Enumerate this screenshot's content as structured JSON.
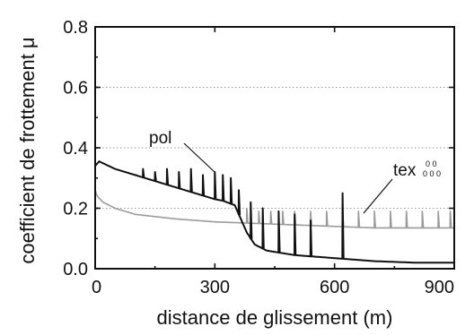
{
  "chart_data": {
    "type": "line",
    "xlabel": "distance de glissement (m)",
    "ylabel": "coefficient de frottement μ",
    "xlim": [
      0,
      900
    ],
    "ylim": [
      0,
      0.8
    ],
    "x_ticks": [
      "0",
      "300",
      "600",
      "900"
    ],
    "y_ticks": [
      "0.0",
      "0.2",
      "0.4",
      "0.6",
      "0.8"
    ],
    "grid": "horizontal dotted lines at 0.2, 0.4, 0.6",
    "colors": {
      "pol": "#111111",
      "tex": "#9a9a9a"
    },
    "annotations": [
      {
        "text": "pol",
        "points_to": [
          320,
          0.31
        ]
      },
      {
        "text": "tex",
        "marker": "0 0 / 0 0 0",
        "points_to": [
          670,
          0.2
        ]
      }
    ],
    "series": [
      {
        "name": "pol",
        "color": "#111111",
        "x": [
          0,
          10,
          50,
          100,
          150,
          200,
          250,
          300,
          320,
          350,
          370,
          380,
          400,
          430,
          500,
          600,
          700,
          800,
          900
        ],
        "y": [
          0.34,
          0.355,
          0.33,
          0.31,
          0.29,
          0.27,
          0.25,
          0.23,
          0.225,
          0.21,
          0.15,
          0.12,
          0.08,
          0.06,
          0.045,
          0.035,
          0.025,
          0.02,
          0.02
        ],
        "spikes": [
          {
            "x": 100,
            "y": 0.31
          },
          {
            "x": 120,
            "y": 0.33
          },
          {
            "x": 150,
            "y": 0.32
          },
          {
            "x": 180,
            "y": 0.33
          },
          {
            "x": 210,
            "y": 0.32
          },
          {
            "x": 240,
            "y": 0.33
          },
          {
            "x": 270,
            "y": 0.31
          },
          {
            "x": 300,
            "y": 0.32
          },
          {
            "x": 320,
            "y": 0.31
          },
          {
            "x": 340,
            "y": 0.3
          },
          {
            "x": 360,
            "y": 0.26
          },
          {
            "x": 390,
            "y": 0.22
          },
          {
            "x": 420,
            "y": 0.2
          },
          {
            "x": 460,
            "y": 0.19
          },
          {
            "x": 500,
            "y": 0.18
          },
          {
            "x": 540,
            "y": 0.16
          },
          {
            "x": 620,
            "y": 0.25
          }
        ]
      },
      {
        "name": "tex",
        "color": "#9a9a9a",
        "x": [
          0,
          5,
          20,
          50,
          100,
          200,
          300,
          400,
          500,
          600,
          700,
          800,
          900
        ],
        "y": [
          0.26,
          0.24,
          0.22,
          0.2,
          0.18,
          0.165,
          0.155,
          0.15,
          0.145,
          0.14,
          0.135,
          0.135,
          0.135
        ],
        "spikes": [
          {
            "x": 380,
            "y": 0.2
          },
          {
            "x": 410,
            "y": 0.19
          },
          {
            "x": 440,
            "y": 0.19
          },
          {
            "x": 470,
            "y": 0.19
          },
          {
            "x": 500,
            "y": 0.19
          },
          {
            "x": 540,
            "y": 0.19
          },
          {
            "x": 580,
            "y": 0.19
          },
          {
            "x": 620,
            "y": 0.19
          },
          {
            "x": 660,
            "y": 0.19
          },
          {
            "x": 700,
            "y": 0.19
          },
          {
            "x": 740,
            "y": 0.19
          },
          {
            "x": 780,
            "y": 0.19
          },
          {
            "x": 820,
            "y": 0.19
          },
          {
            "x": 860,
            "y": 0.19
          },
          {
            "x": 890,
            "y": 0.19
          }
        ]
      }
    ]
  }
}
